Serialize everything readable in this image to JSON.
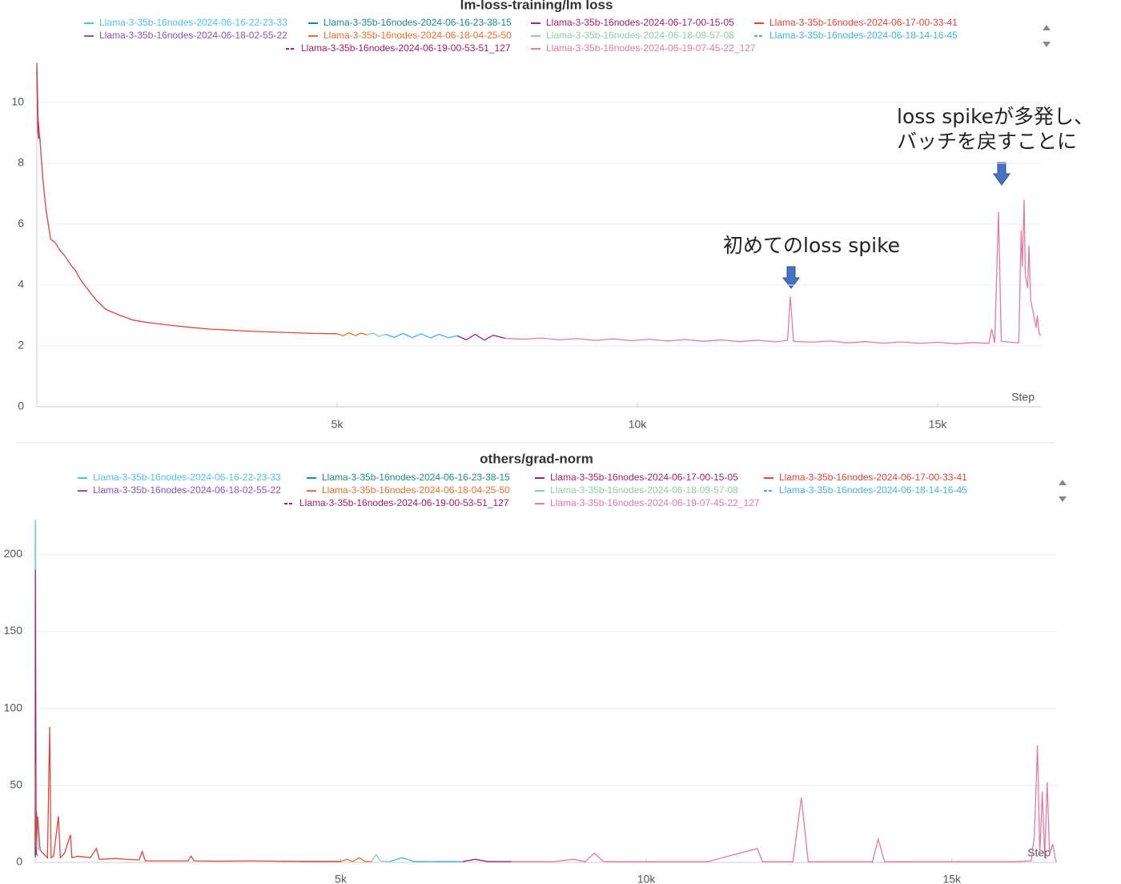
{
  "chart_data": [
    {
      "type": "line",
      "title": "lm-loss-training/lm loss",
      "x_label": "Step",
      "xlim": [
        0,
        16720
      ],
      "ylim": [
        0,
        11.26
      ],
      "xticks": [
        {
          "value": 5000,
          "label": "5k"
        },
        {
          "value": 10000,
          "label": "10k"
        },
        {
          "value": 15000,
          "label": "15k"
        }
      ],
      "yticks": [
        0,
        2,
        4,
        6,
        8,
        10
      ],
      "grid": true,
      "annotations": [
        {
          "text": [
            "初めてのloss spike"
          ]
        },
        {
          "text": [
            "loss spikeが多発し、",
            "バッチを戻すことに"
          ]
        }
      ],
      "series": [
        {
          "name": "Llama-3-35b-16nodes-2024-06-16-22-23-33",
          "color": "#4fc3e8",
          "dashed": false,
          "x": [
            0,
            10,
            20
          ],
          "values": [
            11.2,
            10.4,
            9.1
          ]
        },
        {
          "name": "Llama-3-35b-16nodes-2024-06-16-23-38-15",
          "color": "#1a8f7e",
          "dashed": false,
          "x": [
            0,
            10,
            20
          ],
          "values": [
            11.1,
            9.9,
            9.0
          ]
        },
        {
          "name": "Llama-3-35b-16nodes-2024-06-17-00-15-05",
          "color": "#a3245f",
          "dashed": false,
          "x": [
            0,
            10,
            20,
            30
          ],
          "values": [
            11.0,
            9.95,
            9.0,
            8.8
          ]
        },
        {
          "name": "Llama-3-35b-16nodes-2024-06-17-00-33-41",
          "color": "#e0443c",
          "dashed": false,
          "x": [
            0,
            20,
            50,
            100,
            150,
            230,
            300,
            400,
            450,
            550,
            650,
            720,
            850,
            990,
            1150,
            1390,
            1600,
            1800,
            2050,
            2300,
            2600,
            2900,
            3200,
            3390,
            3700,
            4000,
            4300,
            4600,
            5000
          ],
          "values": [
            11.3,
            9.5,
            8.8,
            7.5,
            6.5,
            5.5,
            5.4,
            5.1,
            5.0,
            4.7,
            4.45,
            4.2,
            3.85,
            3.5,
            3.2,
            3.0,
            2.85,
            2.78,
            2.72,
            2.66,
            2.6,
            2.55,
            2.52,
            2.5,
            2.47,
            2.45,
            2.43,
            2.41,
            2.4
          ]
        },
        {
          "name": "Llama-3-35b-16nodes-2024-06-18-02-55-22",
          "color": "#8a55b5",
          "dashed": false,
          "x": [
            40,
            60
          ],
          "values": [
            8.9,
            8.7
          ]
        },
        {
          "name": "Llama-3-35b-16nodes-2024-06-18-04-25-50",
          "color": "#e8702d",
          "dashed": false,
          "x": [
            5000,
            5100,
            5200,
            5300,
            5400,
            5500
          ],
          "values": [
            2.4,
            2.33,
            2.43,
            2.34,
            2.42,
            2.36
          ]
        },
        {
          "name": "Llama-3-35b-16nodes-2024-06-18-09-57-08",
          "color": "#8fcdb0",
          "dashed": false,
          "x": [
            5500,
            5600,
            5700,
            5800
          ],
          "values": [
            2.36,
            2.42,
            2.31,
            2.38
          ]
        },
        {
          "name": "Llama-3-35b-16nodes-2024-06-18-14-16-45",
          "color": "#3fb6dc",
          "dashed": true,
          "x": [
            5800,
            5950,
            6100,
            6250,
            6400,
            6550,
            6700,
            6850,
            7000
          ],
          "values": [
            2.38,
            2.28,
            2.41,
            2.27,
            2.4,
            2.26,
            2.38,
            2.27,
            2.33
          ]
        },
        {
          "name": "Llama-3-35b-16nodes-2024-06-19-00-53-51_127",
          "color": "#a0215f",
          "dashed": true,
          "x": [
            7000,
            7150,
            7300,
            7450,
            7600,
            7800
          ],
          "values": [
            2.33,
            2.2,
            2.38,
            2.19,
            2.35,
            2.25
          ]
        },
        {
          "name": "Llama-3-35b-16nodes-2024-06-19-07-45-22_127",
          "color": "#e57aa0",
          "dashed": false,
          "x": [
            7800,
            8100,
            8400,
            8700,
            9000,
            9300,
            9600,
            9900,
            10200,
            10500,
            10800,
            11100,
            11400,
            11700,
            12000,
            12300,
            12500,
            12547,
            12600,
            12900,
            13200,
            13500,
            13800,
            14100,
            14400,
            14700,
            15000,
            15300,
            15600,
            15850,
            15900,
            15950,
            16013,
            16060,
            16200,
            16350,
            16390,
            16410,
            16440,
            16460,
            16500,
            16520,
            16550,
            16600,
            16640,
            16660,
            16690,
            16720
          ],
          "values": [
            2.25,
            2.22,
            2.26,
            2.2,
            2.24,
            2.18,
            2.23,
            2.17,
            2.22,
            2.16,
            2.21,
            2.15,
            2.2,
            2.14,
            2.19,
            2.13,
            2.18,
            3.63,
            2.15,
            2.12,
            2.16,
            2.1,
            2.14,
            2.09,
            2.13,
            2.08,
            2.12,
            2.07,
            2.11,
            2.08,
            2.55,
            2.1,
            6.4,
            2.15,
            2.12,
            2.1,
            5.8,
            4.6,
            6.8,
            4.3,
            3.9,
            5.3,
            3.5,
            3.0,
            2.6,
            3.0,
            2.4,
            2.35
          ]
        }
      ]
    },
    {
      "type": "line",
      "title": "others/grad-norm",
      "x_label": "Step",
      "xlim": [
        0,
        16720
      ],
      "ylim": [
        0,
        223
      ],
      "xticks": [
        {
          "value": 5000,
          "label": "5k"
        },
        {
          "value": 10000,
          "label": "10k"
        },
        {
          "value": 15000,
          "label": "15k"
        }
      ],
      "yticks": [
        0,
        50,
        100,
        150,
        200
      ],
      "grid": true,
      "series": [
        {
          "name": "Llama-3-35b-16nodes-2024-06-16-22-23-33",
          "color": "#4fc3e8",
          "dashed": false,
          "x": [
            0,
            2,
            10,
            25,
            50
          ],
          "values": [
            5,
            222,
            15,
            33,
            8
          ]
        },
        {
          "name": "Llama-3-35b-16nodes-2024-06-16-23-38-15",
          "color": "#1a8f7e",
          "dashed": false,
          "x": [
            0,
            10,
            20
          ],
          "values": [
            3,
            12,
            5
          ]
        },
        {
          "name": "Llama-3-35b-16nodes-2024-06-17-00-15-05",
          "color": "#a3245f",
          "dashed": false,
          "x": [
            0,
            3,
            15
          ],
          "values": [
            4,
            190,
            6
          ]
        },
        {
          "name": "Llama-3-35b-16nodes-2024-06-17-00-33-41",
          "color": "#e0443c",
          "dashed": false,
          "x": [
            0,
            10,
            40,
            80,
            150,
            200,
            236,
            260,
            300,
            380,
            410,
            480,
            576,
            600,
            700,
            900,
            1000,
            1050,
            1300,
            1700,
            1750,
            1800,
            2500,
            2550,
            2600,
            3000,
            3500,
            4000,
            4500,
            5000
          ],
          "values": [
            65,
            10,
            30,
            8,
            5,
            3,
            88,
            3,
            4,
            30,
            3,
            6,
            18,
            3,
            4,
            3,
            9,
            2,
            2.5,
            1.5,
            7,
            1,
            1,
            4,
            1,
            0.8,
            1,
            0.8,
            0.7,
            0.6
          ]
        },
        {
          "name": "Llama-3-35b-16nodes-2024-06-18-02-55-22",
          "color": "#8a55b5",
          "dashed": false,
          "x": [
            20,
            40
          ],
          "values": [
            6,
            4
          ]
        },
        {
          "name": "Llama-3-35b-16nodes-2024-06-18-04-25-50",
          "color": "#e8702d",
          "dashed": false,
          "x": [
            5000,
            5100,
            5200,
            5300,
            5400,
            5500
          ],
          "values": [
            0.6,
            2,
            0.5,
            3,
            0.6,
            0.5
          ]
        },
        {
          "name": "Llama-3-35b-16nodes-2024-06-18-09-57-08",
          "color": "#8fcdb0",
          "dashed": false,
          "x": [
            5500,
            5580,
            5650,
            5800
          ],
          "values": [
            0.5,
            5,
            1,
            0.5
          ]
        },
        {
          "name": "Llama-3-35b-16nodes-2024-06-18-14-16-45",
          "color": "#3fb6dc",
          "dashed": true,
          "x": [
            5800,
            6000,
            6200,
            6500,
            6800,
            7000
          ],
          "values": [
            0.5,
            3,
            0.6,
            0.5,
            0.6,
            0.5
          ]
        },
        {
          "name": "Llama-3-35b-16nodes-2024-06-19-00-53-51_127",
          "color": "#a0215f",
          "dashed": true,
          "x": [
            7000,
            7200,
            7400,
            7600,
            7800
          ],
          "values": [
            0.5,
            2,
            0.6,
            0.5,
            0.5
          ]
        },
        {
          "name": "Llama-3-35b-16nodes-2024-06-19-07-45-22_127",
          "color": "#e57aa0",
          "dashed": false,
          "x": [
            7800,
            8500,
            8800,
            9000,
            9150,
            9300,
            10000,
            11000,
            11817,
            11900,
            12400,
            12537,
            12650,
            13700,
            13795,
            13900,
            15000,
            16000,
            16300,
            16350,
            16402,
            16440,
            16480,
            16520,
            16560,
            16600,
            16650,
            16700,
            16720
          ],
          "values": [
            0.5,
            0.5,
            2,
            0.5,
            6,
            0.5,
            0.4,
            0.4,
            9,
            0.4,
            0.4,
            42,
            0.4,
            0.4,
            15,
            0.4,
            0.4,
            0.4,
            1,
            17,
            76,
            5,
            46,
            3,
            52,
            5,
            12,
            1,
            0.5
          ]
        }
      ]
    }
  ]
}
